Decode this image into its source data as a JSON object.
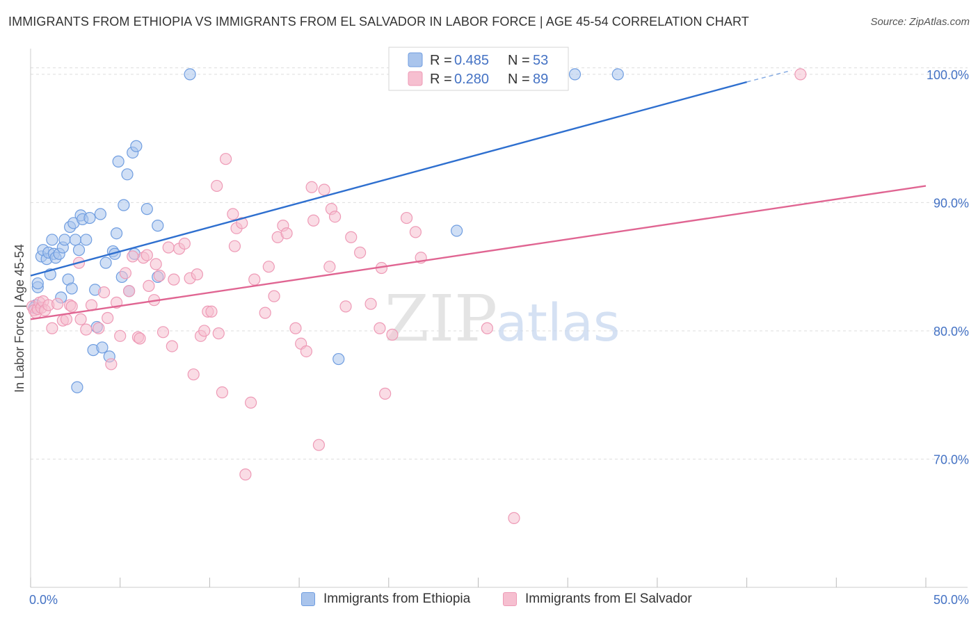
{
  "header": {
    "title": "IMMIGRANTS FROM ETHIOPIA VS IMMIGRANTS FROM EL SALVADOR IN LABOR FORCE | AGE 45-54 CORRELATION CHART",
    "source": "Source: ZipAtlas.com"
  },
  "watermark": {
    "zip": "ZIP",
    "atlas": "atlas"
  },
  "colors": {
    "ethiopia_fill": "#a9c4ec",
    "ethiopia_stroke": "#6f9de0",
    "ethiopia_line": "#2e6fcf",
    "elsalvador_fill": "#f6bfd0",
    "elsalvador_stroke": "#ee9ab6",
    "elsalvador_line": "#e06592",
    "tick_text": "#4472c4",
    "grid": "#dddddd"
  },
  "legend": {
    "rows": [
      {
        "r_label": "R = ",
        "r_value": "0.485",
        "n_label": "N = ",
        "n_value": "53"
      },
      {
        "r_label": "R = ",
        "r_value": "0.280",
        "n_label": "N = ",
        "n_value": "89"
      }
    ]
  },
  "bottom_legend": {
    "ethiopia": "Immigrants from Ethiopia",
    "elsalvador": "Immigrants from El Salvador"
  },
  "chart_data": {
    "type": "scatter",
    "title": "IMMIGRANTS FROM ETHIOPIA VS IMMIGRANTS FROM EL SALVADOR IN LABOR FORCE | AGE 45-54 CORRELATION CHART",
    "xlabel": "",
    "ylabel": "In Labor Force | Age 45-54",
    "xlim": [
      0,
      50
    ],
    "ylim": [
      60,
      102
    ],
    "x_tick_labels": [
      "0.0%",
      "50.0%"
    ],
    "y_ticks": [
      70,
      80,
      90,
      100
    ],
    "y_tick_labels": [
      "70.0%",
      "80.0%",
      "90.0%",
      "100.0%"
    ],
    "grid": true,
    "series": [
      {
        "name": "Immigrants from Ethiopia",
        "r": 0.485,
        "n": 53,
        "trend": {
          "x0": 0,
          "y0": 84.3,
          "x1": 40,
          "y1": 99.4,
          "dash_to_x": 42.5,
          "dash_to_y": 100.3
        },
        "points": [
          [
            0.3,
            82.0
          ],
          [
            0.4,
            83.4
          ],
          [
            0.4,
            83.7
          ],
          [
            0.6,
            85.8
          ],
          [
            0.7,
            86.3
          ],
          [
            0.9,
            85.6
          ],
          [
            1.0,
            86.1
          ],
          [
            1.1,
            84.4
          ],
          [
            1.2,
            87.1
          ],
          [
            1.3,
            86.0
          ],
          [
            1.4,
            85.7
          ],
          [
            1.6,
            86.0
          ],
          [
            1.7,
            82.6
          ],
          [
            1.8,
            86.5
          ],
          [
            1.9,
            87.1
          ],
          [
            2.1,
            84.0
          ],
          [
            2.2,
            88.1
          ],
          [
            2.3,
            83.3
          ],
          [
            2.4,
            88.4
          ],
          [
            2.5,
            87.1
          ],
          [
            2.6,
            75.6
          ],
          [
            2.7,
            86.3
          ],
          [
            2.8,
            89.0
          ],
          [
            2.9,
            88.7
          ],
          [
            3.1,
            87.1
          ],
          [
            3.3,
            88.8
          ],
          [
            3.5,
            78.5
          ],
          [
            3.6,
            83.2
          ],
          [
            3.7,
            80.3
          ],
          [
            3.9,
            89.1
          ],
          [
            4.0,
            78.7
          ],
          [
            4.2,
            85.3
          ],
          [
            4.4,
            78.0
          ],
          [
            4.6,
            86.2
          ],
          [
            4.7,
            86.0
          ],
          [
            4.8,
            87.6
          ],
          [
            4.9,
            93.2
          ],
          [
            5.1,
            84.2
          ],
          [
            5.2,
            89.8
          ],
          [
            5.4,
            92.2
          ],
          [
            5.5,
            83.1
          ],
          [
            5.7,
            93.9
          ],
          [
            5.8,
            86.0
          ],
          [
            5.9,
            94.4
          ],
          [
            6.5,
            89.5
          ],
          [
            7.1,
            88.2
          ],
          [
            7.1,
            84.2
          ],
          [
            8.9,
            100.0
          ],
          [
            17.2,
            77.8
          ],
          [
            23.8,
            87.8
          ],
          [
            30.4,
            100.0
          ],
          [
            32.8,
            100.0
          ],
          [
            0.2,
            81.8
          ]
        ]
      },
      {
        "name": "Immigrants from El Salvador",
        "r": 0.28,
        "n": 89,
        "trend": {
          "x0": 0,
          "y0": 80.9,
          "x1": 50,
          "y1": 91.3
        },
        "points": [
          [
            0.1,
            81.9
          ],
          [
            0.2,
            81.6
          ],
          [
            0.3,
            81.4
          ],
          [
            0.4,
            81.7
          ],
          [
            0.5,
            82.2
          ],
          [
            0.6,
            81.8
          ],
          [
            0.7,
            82.3
          ],
          [
            0.8,
            81.6
          ],
          [
            1.0,
            82.0
          ],
          [
            1.2,
            80.2
          ],
          [
            1.5,
            82.1
          ],
          [
            1.8,
            80.8
          ],
          [
            2.0,
            80.9
          ],
          [
            2.2,
            82.0
          ],
          [
            2.3,
            81.9
          ],
          [
            2.7,
            85.3
          ],
          [
            2.8,
            80.9
          ],
          [
            3.1,
            80.1
          ],
          [
            3.4,
            82.0
          ],
          [
            3.8,
            80.2
          ],
          [
            4.1,
            83.0
          ],
          [
            4.3,
            81.0
          ],
          [
            4.5,
            77.4
          ],
          [
            4.8,
            82.2
          ],
          [
            5.0,
            79.6
          ],
          [
            5.3,
            84.5
          ],
          [
            5.5,
            83.1
          ],
          [
            5.7,
            85.8
          ],
          [
            6.0,
            79.5
          ],
          [
            6.1,
            79.4
          ],
          [
            6.3,
            85.7
          ],
          [
            6.5,
            85.9
          ],
          [
            6.6,
            83.5
          ],
          [
            6.9,
            82.4
          ],
          [
            7.0,
            85.2
          ],
          [
            7.2,
            84.3
          ],
          [
            7.4,
            79.9
          ],
          [
            7.7,
            86.5
          ],
          [
            7.9,
            78.8
          ],
          [
            8.0,
            84.0
          ],
          [
            8.3,
            86.4
          ],
          [
            8.6,
            86.8
          ],
          [
            8.9,
            84.1
          ],
          [
            9.1,
            76.6
          ],
          [
            9.3,
            84.4
          ],
          [
            9.5,
            79.6
          ],
          [
            9.7,
            80.0
          ],
          [
            9.9,
            81.5
          ],
          [
            10.1,
            81.5
          ],
          [
            10.4,
            91.3
          ],
          [
            10.5,
            79.8
          ],
          [
            10.7,
            75.2
          ],
          [
            10.9,
            93.4
          ],
          [
            11.3,
            89.1
          ],
          [
            11.4,
            86.6
          ],
          [
            11.5,
            88.0
          ],
          [
            11.8,
            88.4
          ],
          [
            12.0,
            68.8
          ],
          [
            12.3,
            74.4
          ],
          [
            12.5,
            84.0
          ],
          [
            13.1,
            81.4
          ],
          [
            13.3,
            85.0
          ],
          [
            13.6,
            82.7
          ],
          [
            13.8,
            87.3
          ],
          [
            14.1,
            88.2
          ],
          [
            14.3,
            87.6
          ],
          [
            14.8,
            80.2
          ],
          [
            15.1,
            79.0
          ],
          [
            15.4,
            78.4
          ],
          [
            15.7,
            91.2
          ],
          [
            15.8,
            88.6
          ],
          [
            16.1,
            71.1
          ],
          [
            16.4,
            91.0
          ],
          [
            16.7,
            85.0
          ],
          [
            16.8,
            89.5
          ],
          [
            17.0,
            88.9
          ],
          [
            17.6,
            81.9
          ],
          [
            17.9,
            87.3
          ],
          [
            18.4,
            86.1
          ],
          [
            19.0,
            82.1
          ],
          [
            19.5,
            80.2
          ],
          [
            19.6,
            84.9
          ],
          [
            19.8,
            75.1
          ],
          [
            20.2,
            79.7
          ],
          [
            21.0,
            88.8
          ],
          [
            21.5,
            87.7
          ],
          [
            21.8,
            85.7
          ],
          [
            25.5,
            80.2
          ],
          [
            27.0,
            65.4
          ],
          [
            43.0,
            100.0
          ]
        ]
      }
    ]
  }
}
